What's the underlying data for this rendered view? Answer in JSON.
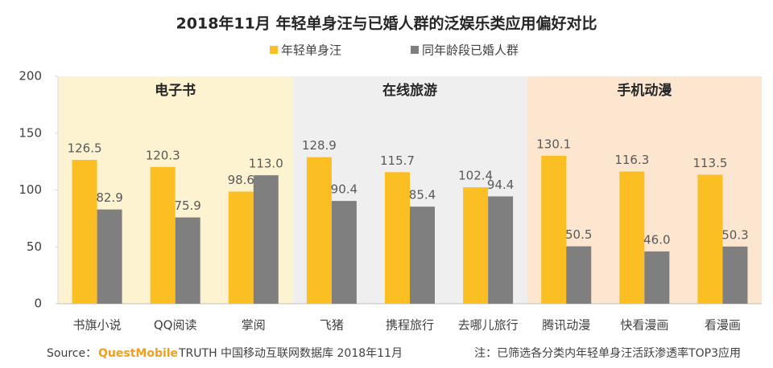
{
  "chart_data": {
    "type": "grouped_bar",
    "title": "2018年11月 年轻单身汪与已婚人群的泛娱乐类应用偏好对比",
    "groups": [
      {
        "name": "电子书",
        "color": "#fdf3d0",
        "categories": [
          "书旗小说",
          "QQ阅读",
          "掌阅"
        ]
      },
      {
        "name": "在线旅游",
        "color": "#efefef",
        "categories": [
          "飞猪",
          "携程旅行",
          "去哪儿旅行"
        ]
      },
      {
        "name": "手机动漫",
        "color": "#fce6cf",
        "categories": [
          "腾讯动漫",
          "快看漫画",
          "看漫画"
        ]
      }
    ],
    "series": [
      {
        "name": "年轻单身汪",
        "color": "#fbbf24",
        "values": [
          126.5,
          120.3,
          98.6,
          128.9,
          115.7,
          102.4,
          130.1,
          116.3,
          113.5
        ],
        "value_labels": [
          "126.5",
          "120.3",
          "98.6",
          "128.9",
          "115.7",
          "102.4",
          "130.1",
          "116.3",
          "113.5"
        ]
      },
      {
        "name": "同年龄段已婚人群",
        "color": "#7f7f7f",
        "values": [
          82.9,
          75.9,
          113.0,
          90.4,
          85.4,
          94.4,
          50.5,
          46.0,
          50.3
        ],
        "value_labels": [
          "82.9",
          "75.9",
          "113.0",
          "90.4",
          "85.4",
          "94.4",
          "50.5",
          "46.0",
          "50.3"
        ]
      }
    ],
    "ylim": [
      0,
      200
    ],
    "yticks": [
      0,
      50,
      100,
      150,
      200
    ],
    "legend": "top"
  },
  "footer": {
    "source_label": "Source：",
    "brand": "QuestMobile",
    "source": "TRUTH 中国移动互联网数据库 2018年11月",
    "note": "注：已筛选各分类内年轻单身汪活跃渗透率TOP3应用"
  }
}
